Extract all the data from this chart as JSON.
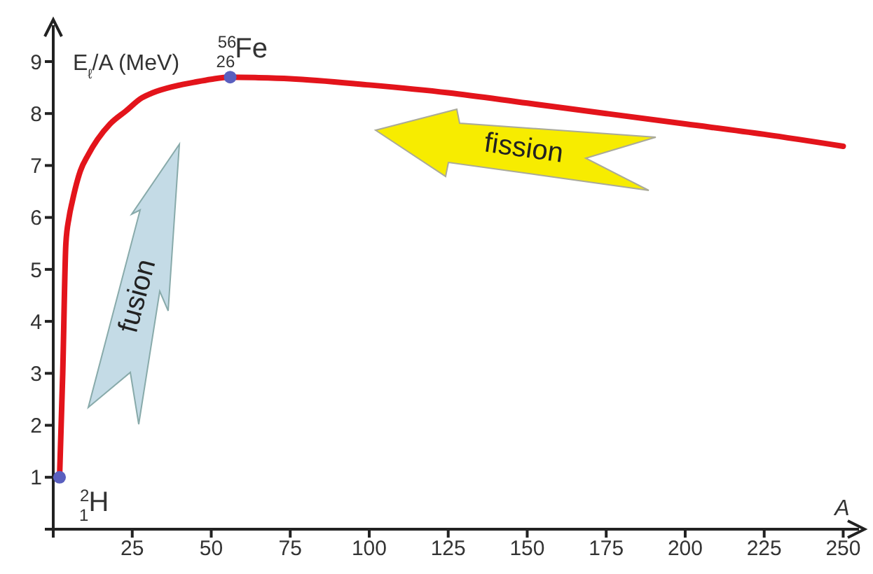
{
  "chart_data": {
    "type": "line",
    "xlabel": "A",
    "ylabel": "E$_{ℓ}$/A (MeV)",
    "xlim": [
      0,
      255
    ],
    "ylim": [
      0,
      9.7
    ],
    "xticks": [
      {
        "value": 0,
        "label": null
      },
      25,
      50,
      75,
      100,
      125,
      150,
      175,
      200,
      225,
      250
    ],
    "yticks": [
      {
        "value": 0,
        "label": null
      },
      1,
      2,
      3,
      4,
      5,
      6,
      7,
      8,
      9
    ],
    "series": [
      {
        "color": "#e3141b",
        "marker": "none",
        "x": [
          2,
          3,
          4,
          5,
          6,
          8.6,
          11,
          14,
          18,
          23,
          28,
          31.5,
          38,
          44.5,
          50,
          56,
          65,
          75,
          100,
          125,
          150,
          175,
          200,
          225,
          250
        ],
        "values": [
          1,
          3,
          5.5,
          6.0,
          6.3,
          6.9,
          7.2,
          7.5,
          7.8,
          8.05,
          8.3,
          8.4,
          8.52,
          8.6,
          8.66,
          8.7,
          8.69,
          8.67,
          8.55,
          8.4,
          8.2,
          8.0,
          7.8,
          7.6,
          7.37
        ]
      },
      {
        "type": "scatter",
        "color": "#5a5fbf",
        "marker": "circle",
        "x": [
          2,
          56
        ],
        "values": [
          1,
          8.7
        ]
      }
    ],
    "annotations": [
      {
        "text": "$^{2}$$_{1}$H",
        "x": 2,
        "y": 1
      },
      {
        "text": "$^{56}$$_{26}$Fe",
        "x": 56,
        "y": 8.7
      },
      "fusion",
      "fission"
    ]
  }
}
